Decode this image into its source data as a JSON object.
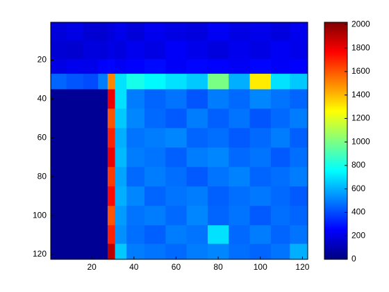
{
  "chart_data": {
    "type": "heatmap",
    "colormap": "jet",
    "x": [
      4,
      12,
      20,
      26,
      29,
      33,
      40,
      50,
      60,
      70,
      80,
      90,
      100,
      110,
      118
    ],
    "y": [
      5,
      15,
      24,
      30,
      40,
      50,
      60,
      70,
      80,
      90,
      100,
      110,
      119
    ],
    "values": [
      [
        180,
        200,
        170,
        160,
        190,
        210,
        180,
        220,
        200,
        190,
        230,
        200,
        210,
        190,
        220
      ],
      [
        170,
        160,
        190,
        180,
        200,
        190,
        220,
        200,
        240,
        210,
        190,
        220,
        200,
        230,
        210
      ],
      [
        200,
        220,
        210,
        250,
        260,
        230,
        250,
        270,
        240,
        260,
        250,
        230,
        260,
        240,
        250
      ],
      [
        450,
        420,
        400,
        500,
        1500,
        700,
        800,
        750,
        700,
        650,
        1000,
        600,
        1300,
        700,
        650
      ],
      [
        40,
        40,
        40,
        40,
        1800,
        700,
        500,
        450,
        480,
        420,
        500,
        460,
        520,
        480,
        450
      ],
      [
        40,
        40,
        40,
        40,
        1600,
        650,
        520,
        460,
        430,
        500,
        440,
        480,
        420,
        460,
        500
      ],
      [
        40,
        40,
        40,
        40,
        1700,
        600,
        480,
        500,
        520,
        450,
        470,
        430,
        460,
        500,
        440
      ],
      [
        40,
        40,
        40,
        40,
        1800,
        620,
        500,
        480,
        440,
        500,
        520,
        460,
        480,
        430,
        470
      ],
      [
        40,
        40,
        40,
        40,
        1650,
        580,
        460,
        500,
        470,
        430,
        480,
        510,
        450,
        470,
        500
      ],
      [
        40,
        40,
        40,
        40,
        1750,
        600,
        520,
        450,
        480,
        500,
        440,
        470,
        490,
        460,
        430
      ],
      [
        40,
        40,
        40,
        40,
        1600,
        560,
        480,
        500,
        460,
        520,
        450,
        480,
        430,
        470,
        450
      ],
      [
        40,
        40,
        40,
        40,
        1700,
        540,
        470,
        440,
        500,
        480,
        700,
        460,
        500,
        450,
        480
      ],
      [
        40,
        40,
        40,
        40,
        1900,
        650,
        500,
        480,
        460,
        500,
        520,
        470,
        450,
        480,
        600
      ]
    ],
    "xlim": [
      0.5,
      122.5
    ],
    "ylim": [
      0.5,
      122.5
    ],
    "xticks": [
      20,
      40,
      60,
      80,
      100,
      120
    ],
    "yticks": [
      20,
      40,
      60,
      80,
      100,
      120
    ],
    "clim": [
      0,
      2020
    ],
    "cticks": [
      0,
      200,
      400,
      600,
      800,
      1000,
      1200,
      1400,
      1600,
      1800,
      2000
    ]
  }
}
